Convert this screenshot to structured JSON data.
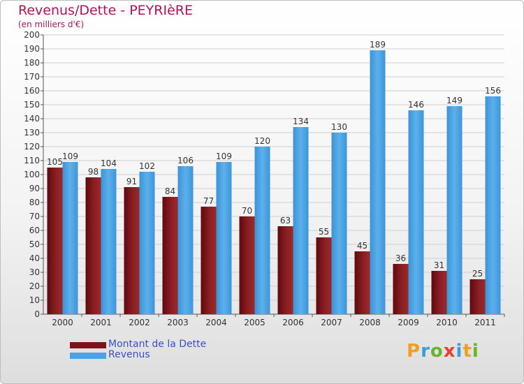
{
  "title": "Revenus/Dette - PEYRIèRE",
  "subtitle": "(en milliers d'€)",
  "logo": {
    "text": "Proxiti",
    "colors": [
      "#f0a020",
      "#3a9fd8",
      "#6ab42a",
      "#e8402a",
      "#3a9fd8",
      "#f0a020",
      "#6ab42a"
    ]
  },
  "legend": [
    {
      "label": "Montant de la Dette",
      "color": "#7a1418"
    },
    {
      "label": "Revenus",
      "color": "#4aa3e6"
    }
  ],
  "chart_data": {
    "type": "bar",
    "categories": [
      "2000",
      "2001",
      "2002",
      "2003",
      "2004",
      "2005",
      "2006",
      "2007",
      "2008",
      "2009",
      "2010",
      "2011"
    ],
    "series": [
      {
        "name": "Montant de la Dette",
        "color": "#7a1418",
        "values": [
          105,
          98,
          91,
          84,
          77,
          70,
          63,
          55,
          45,
          36,
          31,
          25
        ]
      },
      {
        "name": "Revenus",
        "color": "#4aa3e6",
        "values": [
          109,
          104,
          102,
          106,
          109,
          120,
          134,
          130,
          189,
          146,
          149,
          156
        ]
      }
    ],
    "ylim": [
      0,
      200
    ],
    "yticks": [
      0,
      10,
      20,
      30,
      40,
      50,
      60,
      70,
      80,
      90,
      100,
      110,
      120,
      130,
      140,
      150,
      160,
      170,
      180,
      190,
      200
    ],
    "grid": true,
    "legend_position": "bottom-left"
  }
}
